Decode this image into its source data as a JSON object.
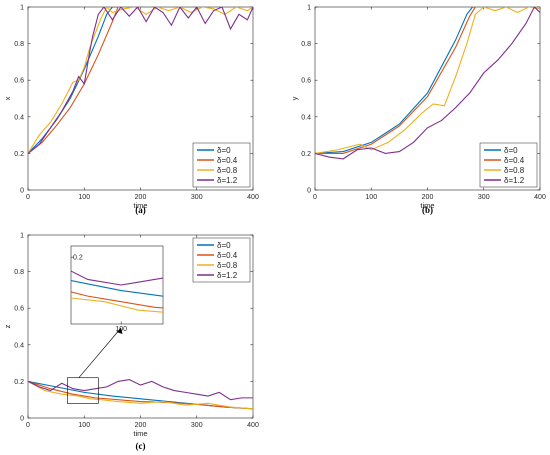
{
  "colors": {
    "delta_0": "#0072BD",
    "delta_0.4": "#D95319",
    "delta_0.8": "#EDB120",
    "delta_1.2": "#7E2F8E",
    "axis": "#262626"
  },
  "chart_data": [
    {
      "type": "line",
      "panel_label": "(a)",
      "xlabel": "time",
      "ylabel": "x",
      "xlim": [
        0,
        400
      ],
      "ylim": [
        0,
        1
      ],
      "xticks": [
        0,
        100,
        200,
        300,
        400
      ],
      "yticks": [
        0,
        0.2,
        0.4,
        0.6,
        0.8,
        1
      ],
      "grid": false,
      "legend_position": "bottom-right",
      "series": [
        {
          "name": "δ=0",
          "color": "#0072BD",
          "x": [
            0,
            25,
            50,
            75,
            100,
            125,
            140,
            150,
            400
          ],
          "y": [
            0.2,
            0.28,
            0.38,
            0.5,
            0.66,
            0.84,
            0.96,
            1.0,
            1.0
          ]
        },
        {
          "name": "δ=0.4",
          "color": "#D95319",
          "x": [
            0,
            25,
            50,
            75,
            100,
            125,
            150,
            160,
            400
          ],
          "y": [
            0.2,
            0.26,
            0.35,
            0.45,
            0.58,
            0.74,
            0.92,
            1.0,
            1.0
          ]
        },
        {
          "name": "δ=0.8",
          "color": "#EDB120",
          "x": [
            0,
            20,
            40,
            60,
            70,
            80,
            90,
            100,
            110,
            120,
            130,
            140,
            150,
            170,
            190,
            210,
            230,
            250,
            270,
            290,
            310,
            330,
            350,
            370,
            390,
            400
          ],
          "y": [
            0.2,
            0.3,
            0.37,
            0.47,
            0.53,
            0.59,
            0.6,
            0.67,
            0.78,
            0.86,
            0.94,
            1.0,
            0.97,
            0.99,
            1.0,
            0.96,
            1.0,
            0.98,
            1.0,
            0.97,
            1.0,
            0.99,
            0.96,
            1.0,
            0.98,
            1.0
          ]
        },
        {
          "name": "δ=1.2",
          "color": "#7E2F8E",
          "x": [
            0,
            20,
            40,
            60,
            80,
            90,
            100,
            110,
            115,
            125,
            135,
            150,
            165,
            180,
            195,
            210,
            225,
            240,
            255,
            270,
            285,
            300,
            315,
            330,
            345,
            360,
            375,
            390,
            400
          ],
          "y": [
            0.2,
            0.25,
            0.34,
            0.43,
            0.54,
            0.62,
            0.58,
            0.76,
            0.84,
            0.96,
            1.0,
            0.93,
            1.0,
            0.95,
            1.0,
            0.92,
            1.0,
            0.97,
            0.9,
            1.0,
            0.94,
            1.0,
            0.91,
            0.98,
            1.0,
            0.88,
            0.96,
            0.93,
            1.0
          ]
        }
      ]
    },
    {
      "type": "line",
      "panel_label": "(b)",
      "xlabel": "time",
      "ylabel": "y",
      "xlim": [
        0,
        400
      ],
      "ylim": [
        0,
        1
      ],
      "xticks": [
        0,
        100,
        200,
        300,
        400
      ],
      "yticks": [
        0,
        0.2,
        0.4,
        0.6,
        0.8,
        1
      ],
      "grid": false,
      "legend_position": "bottom-right",
      "series": [
        {
          "name": "δ=0",
          "color": "#0072BD",
          "x": [
            0,
            50,
            100,
            150,
            200,
            250,
            270,
            280,
            400
          ],
          "y": [
            0.2,
            0.21,
            0.26,
            0.36,
            0.53,
            0.82,
            0.96,
            1.0,
            1.0
          ]
        },
        {
          "name": "δ=0.4",
          "color": "#D95319",
          "x": [
            0,
            50,
            100,
            150,
            200,
            250,
            275,
            285,
            400
          ],
          "y": [
            0.2,
            0.2,
            0.25,
            0.35,
            0.51,
            0.78,
            0.95,
            1.0,
            1.0
          ]
        },
        {
          "name": "δ=0.8",
          "color": "#EDB120",
          "x": [
            0,
            40,
            80,
            100,
            130,
            160,
            190,
            210,
            230,
            250,
            270,
            285,
            300,
            320,
            340,
            360,
            380,
            400
          ],
          "y": [
            0.2,
            0.22,
            0.25,
            0.22,
            0.26,
            0.33,
            0.42,
            0.47,
            0.46,
            0.62,
            0.8,
            0.96,
            1.0,
            0.98,
            1.0,
            0.97,
            1.0,
            0.99
          ]
        },
        {
          "name": "δ=1.2",
          "color": "#7E2F8E",
          "x": [
            0,
            25,
            50,
            75,
            100,
            125,
            150,
            175,
            200,
            225,
            250,
            275,
            300,
            325,
            350,
            375,
            390,
            400
          ],
          "y": [
            0.2,
            0.18,
            0.17,
            0.22,
            0.23,
            0.2,
            0.21,
            0.26,
            0.34,
            0.38,
            0.45,
            0.53,
            0.64,
            0.71,
            0.8,
            0.91,
            1.0,
            0.97
          ]
        }
      ]
    },
    {
      "type": "line",
      "panel_label": "(c)",
      "xlabel": "time",
      "ylabel": "z",
      "xlim": [
        0,
        400
      ],
      "ylim": [
        0,
        1
      ],
      "xticks": [
        0,
        100,
        200,
        300,
        400
      ],
      "yticks": [
        0,
        0.2,
        0.4,
        0.6,
        0.8,
        1
      ],
      "grid": false,
      "legend_position": "top-right",
      "inset": {
        "ytick_label": "0.2",
        "xtick_label": "100",
        "xlim": [
          70,
          125
        ],
        "ylim": [
          0.08,
          0.22
        ],
        "yticks": [
          0.2
        ],
        "xticks": [
          100
        ]
      },
      "series": [
        {
          "name": "δ=0",
          "color": "#0072BD",
          "x": [
            0,
            50,
            100,
            150,
            200,
            250,
            300,
            350,
            400
          ],
          "y": [
            0.2,
            0.17,
            0.14,
            0.12,
            0.105,
            0.09,
            0.075,
            0.06,
            0.05
          ]
        },
        {
          "name": "δ=0.4",
          "color": "#D95319",
          "x": [
            0,
            40,
            80,
            100,
            120,
            160,
            200,
            250,
            300,
            350,
            400
          ],
          "y": [
            0.2,
            0.16,
            0.13,
            0.12,
            0.11,
            0.1,
            0.09,
            0.085,
            0.075,
            0.06,
            0.05
          ]
        },
        {
          "name": "δ=0.8",
          "color": "#EDB120",
          "x": [
            0,
            30,
            60,
            90,
            110,
            130,
            160,
            200,
            240,
            280,
            320,
            360,
            400
          ],
          "y": [
            0.2,
            0.15,
            0.13,
            0.12,
            0.105,
            0.1,
            0.09,
            0.08,
            0.09,
            0.07,
            0.08,
            0.06,
            0.05
          ]
        },
        {
          "name": "δ=1.2",
          "color": "#7E2F8E",
          "x": [
            0,
            20,
            40,
            60,
            80,
            100,
            120,
            140,
            160,
            180,
            200,
            220,
            240,
            260,
            280,
            300,
            320,
            340,
            360,
            380,
            400
          ],
          "y": [
            0.2,
            0.17,
            0.15,
            0.19,
            0.16,
            0.15,
            0.16,
            0.17,
            0.2,
            0.21,
            0.18,
            0.2,
            0.17,
            0.15,
            0.14,
            0.13,
            0.12,
            0.14,
            0.1,
            0.11,
            0.11
          ]
        }
      ]
    }
  ]
}
